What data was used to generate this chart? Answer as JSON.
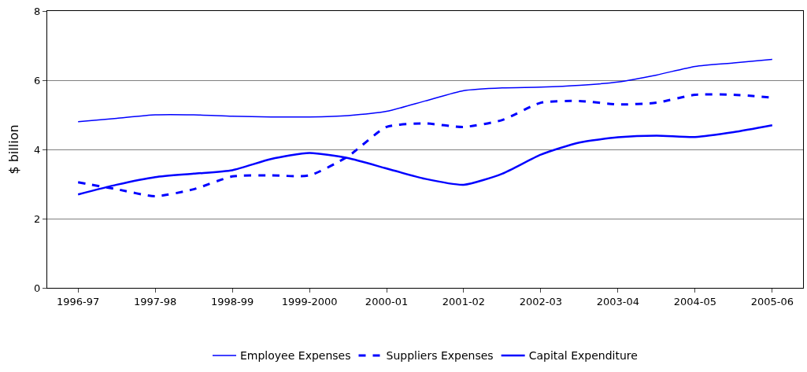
{
  "chart_data": {
    "type": "line",
    "ylabel": "$ billion",
    "categories": [
      "1996-97",
      null,
      "1997-98",
      null,
      "1998-99",
      null,
      "1999-2000",
      null,
      "2000-01",
      null,
      "2001-02",
      null,
      "2002-03",
      null,
      "2003-04",
      null,
      "2004-05",
      null,
      "2005-06"
    ],
    "series": [
      {
        "name": "Employee Expenses",
        "color": "#0000ff",
        "line_style": "solid",
        "values": [
          4.8,
          4.9,
          5.0,
          5.0,
          4.96,
          4.94,
          4.94,
          4.98,
          5.1,
          5.4,
          5.7,
          5.78,
          5.8,
          5.85,
          5.95,
          6.15,
          6.4,
          6.5,
          6.6
        ]
      },
      {
        "name": "Suppliers Expenses",
        "color": "#0000ff",
        "line_style": "dashed",
        "values": [
          3.05,
          2.85,
          2.65,
          2.85,
          3.22,
          3.25,
          3.25,
          3.8,
          4.65,
          4.75,
          4.65,
          4.85,
          5.35,
          5.4,
          5.3,
          5.35,
          5.58,
          5.58,
          5.5
        ]
      },
      {
        "name": "Capital Expenditure",
        "color": "#0000ff",
        "line_style": "solid",
        "values": [
          2.7,
          2.98,
          3.2,
          3.3,
          3.4,
          3.72,
          3.9,
          3.75,
          3.45,
          3.15,
          2.98,
          3.3,
          3.85,
          4.2,
          4.35,
          4.4,
          4.36,
          4.5,
          4.7
        ]
      }
    ],
    "ylim": [
      0,
      8
    ],
    "yticks": [
      0,
      2,
      4,
      6,
      8
    ],
    "grid": "y",
    "legend": "bottom",
    "marker": "none"
  }
}
